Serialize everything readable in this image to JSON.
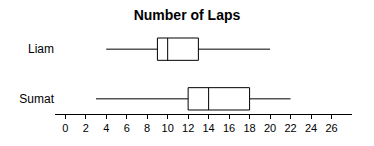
{
  "chart_data": {
    "type": "box",
    "title": "Number of Laps",
    "orientation": "horizontal",
    "color": "#000000",
    "series": [
      {
        "name": "Liam",
        "min": 4,
        "q1": 9,
        "median": 10,
        "q3": 13,
        "max": 20
      },
      {
        "name": "Sumat",
        "min": 3,
        "q1": 12,
        "median": 14,
        "q3": 18,
        "max": 22
      }
    ],
    "xlim": [
      -1,
      28
    ],
    "xticks": [
      0,
      2,
      4,
      6,
      8,
      10,
      12,
      14,
      16,
      18,
      20,
      22,
      24,
      26
    ],
    "grid": false
  }
}
